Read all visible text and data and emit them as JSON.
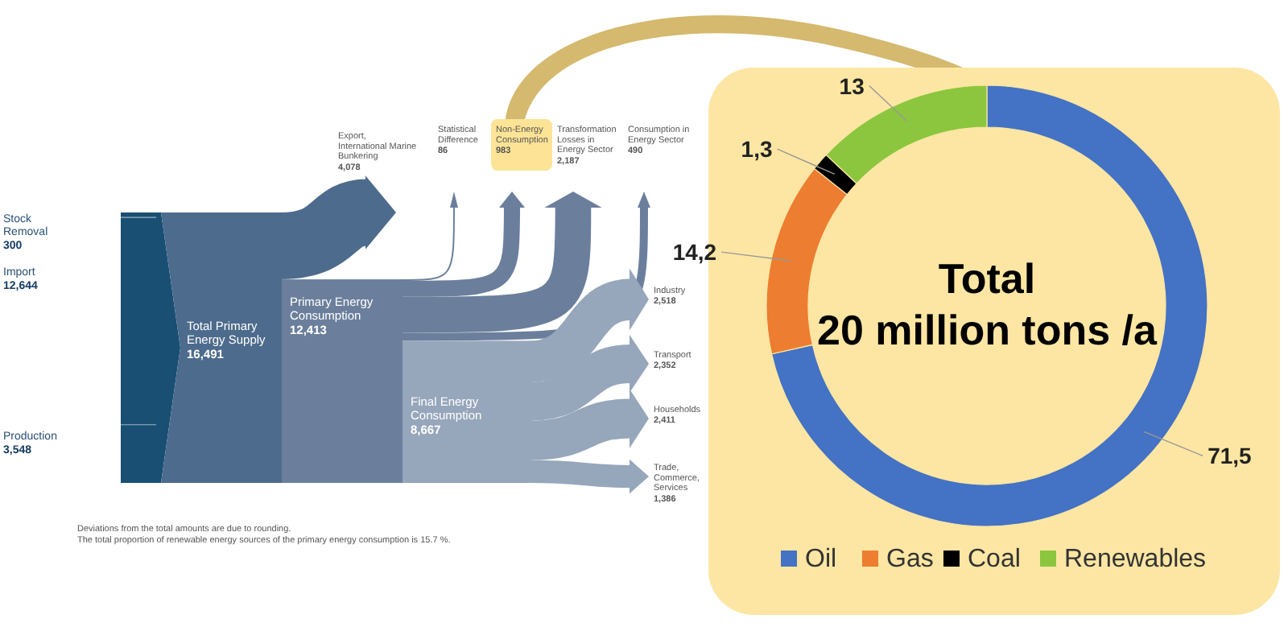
{
  "chart_data": [
    {
      "type": "other",
      "categories": [
        "Stock Removal",
        "Import",
        "Production",
        "Total Primary Energy Supply",
        "Export, International Marine Bunkering",
        "Primary Energy Consumption",
        "Statistical Difference",
        "Non-Energy Consumption",
        "Transformation Losses in Energy Sector",
        "Consumption in Energy Sector",
        "Final Energy Consumption",
        "Industry",
        "Transport",
        "Households",
        "Trade, Commerce, Services"
      ],
      "values": [
        300,
        12644,
        3548,
        16491,
        4078,
        12413,
        86,
        983,
        2187,
        490,
        8667,
        2518,
        2352,
        2411,
        1386
      ],
      "value_labels": [
        "300",
        "12,644",
        "3,548",
        "16,491",
        "4,078",
        "12,413",
        "86",
        "983",
        "2,187",
        "490",
        "8,667",
        "2,518",
        "2,352",
        "2,411",
        "1,386"
      ],
      "annotations": [
        "Deviations from the total amounts are due to rounding.",
        "The total proportion of renewable energy sources of the primary energy consumption is 15.7 %."
      ]
    },
    {
      "type": "donut",
      "title": "Total",
      "subtitle": "20 million tons /a",
      "categories": [
        "Oil",
        "Gas",
        "Coal",
        "Renewables"
      ],
      "values": [
        71.5,
        14.2,
        1.3,
        13
      ],
      "value_labels": [
        "71,5",
        "14,2",
        "1,3",
        "13"
      ],
      "colors": [
        "#4472c4",
        "#ed7d31",
        "#000000",
        "#8cc63e"
      ],
      "legend": "bottom"
    }
  ]
}
